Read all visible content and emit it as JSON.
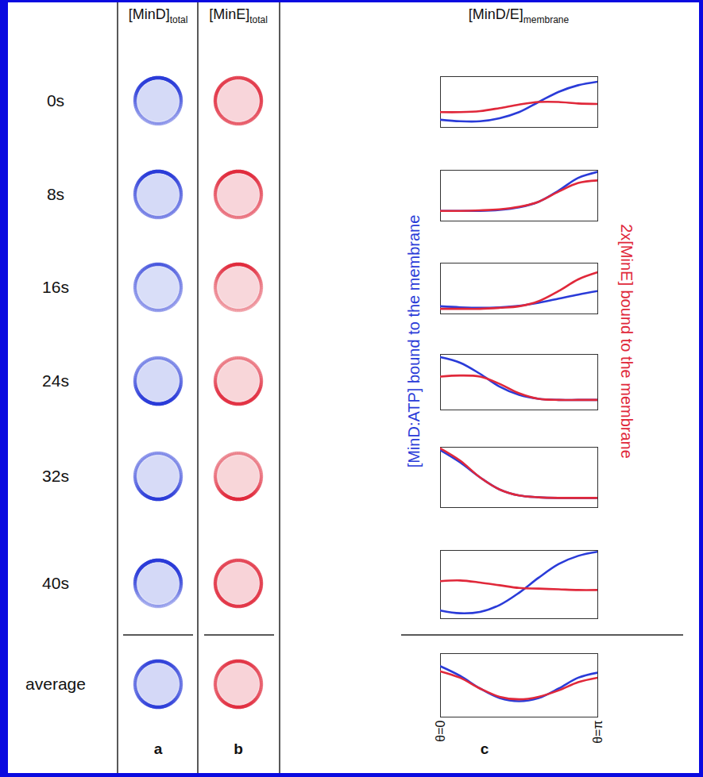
{
  "figure": {
    "column_heads": [
      {
        "text": "[MinD]",
        "subscript": "total"
      },
      {
        "text": "[MinE]",
        "subscript": "total"
      },
      {
        "text": "[MinD/E]",
        "subscript": "membrane"
      }
    ],
    "panel_letters": [
      "a",
      "b",
      "c"
    ]
  },
  "chart_data": [
    {
      "type": "line",
      "title": "0s",
      "x": [
        0,
        0.39,
        0.79,
        1.18,
        1.57,
        1.96,
        2.36,
        2.75,
        3.14
      ],
      "xlim": [
        0,
        3.14
      ],
      "ylim": [
        0,
        1
      ],
      "tick_labels": false,
      "series": [
        {
          "name": "[MinD:ATP] bound to the membrane",
          "color": "#2a3bd8",
          "values": [
            0.15,
            0.12,
            0.12,
            0.18,
            0.3,
            0.5,
            0.7,
            0.83,
            0.9
          ]
        },
        {
          "name": "2x[MinE] bound to the membrane",
          "color": "#e0283a",
          "values": [
            0.3,
            0.3,
            0.32,
            0.38,
            0.45,
            0.5,
            0.5,
            0.47,
            0.46
          ]
        }
      ]
    },
    {
      "type": "line",
      "title": "8s",
      "x": [
        0,
        0.39,
        0.79,
        1.18,
        1.57,
        1.96,
        2.36,
        2.75,
        3.14
      ],
      "xlim": [
        0,
        3.14
      ],
      "ylim": [
        0,
        1
      ],
      "tick_labels": false,
      "series": [
        {
          "name": "[MinD:ATP] bound to the membrane",
          "color": "#2a3bd8",
          "values": [
            0.2,
            0.2,
            0.2,
            0.22,
            0.27,
            0.38,
            0.6,
            0.85,
            0.97
          ]
        },
        {
          "name": "2x[MinE] bound to the membrane",
          "color": "#e0283a",
          "values": [
            0.2,
            0.2,
            0.21,
            0.23,
            0.28,
            0.38,
            0.58,
            0.75,
            0.8
          ]
        }
      ]
    },
    {
      "type": "line",
      "title": "16s",
      "x": [
        0,
        0.39,
        0.79,
        1.18,
        1.57,
        1.96,
        2.36,
        2.75,
        3.14
      ],
      "xlim": [
        0,
        3.14
      ],
      "ylim": [
        0,
        1
      ],
      "tick_labels": false,
      "series": [
        {
          "name": "[MinD:ATP] bound to the membrane",
          "color": "#2a3bd8",
          "values": [
            0.15,
            0.13,
            0.12,
            0.13,
            0.16,
            0.22,
            0.3,
            0.38,
            0.45
          ]
        },
        {
          "name": "2x[MinE] bound to the membrane",
          "color": "#e0283a",
          "values": [
            0.1,
            0.1,
            0.1,
            0.12,
            0.15,
            0.25,
            0.45,
            0.68,
            0.82
          ]
        }
      ]
    },
    {
      "type": "line",
      "title": "24s",
      "x": [
        0,
        0.39,
        0.79,
        1.18,
        1.57,
        1.96,
        2.36,
        2.75,
        3.14
      ],
      "xlim": [
        0,
        3.14
      ],
      "ylim": [
        0,
        1
      ],
      "tick_labels": false,
      "series": [
        {
          "name": "[MinD:ATP] bound to the membrane",
          "color": "#2a3bd8",
          "values": [
            0.95,
            0.85,
            0.65,
            0.42,
            0.27,
            0.2,
            0.18,
            0.18,
            0.18
          ]
        },
        {
          "name": "2x[MinE] bound to the membrane",
          "color": "#e0283a",
          "values": [
            0.6,
            0.62,
            0.6,
            0.47,
            0.3,
            0.2,
            0.18,
            0.18,
            0.18
          ]
        }
      ]
    },
    {
      "type": "line",
      "title": "32s",
      "x": [
        0,
        0.39,
        0.79,
        1.18,
        1.57,
        1.96,
        2.36,
        2.75,
        3.14
      ],
      "xlim": [
        0,
        3.14
      ],
      "ylim": [
        0,
        1
      ],
      "tick_labels": false,
      "series": [
        {
          "name": "[MinD:ATP] bound to the membrane",
          "color": "#2a3bd8",
          "values": [
            0.95,
            0.75,
            0.5,
            0.3,
            0.2,
            0.17,
            0.16,
            0.16,
            0.16
          ]
        },
        {
          "name": "2x[MinE] bound to the membrane",
          "color": "#e0283a",
          "values": [
            0.98,
            0.78,
            0.5,
            0.3,
            0.2,
            0.17,
            0.16,
            0.16,
            0.16
          ]
        }
      ]
    },
    {
      "type": "line",
      "title": "40s",
      "x": [
        0,
        0.39,
        0.79,
        1.18,
        1.57,
        1.96,
        2.36,
        2.75,
        3.14
      ],
      "xlim": [
        0,
        3.14
      ],
      "ylim": [
        0,
        1
      ],
      "tick_labels": false,
      "series": [
        {
          "name": "[MinD:ATP] bound to the membrane",
          "color": "#2a3bd8",
          "values": [
            0.12,
            0.08,
            0.1,
            0.2,
            0.38,
            0.6,
            0.8,
            0.92,
            0.98
          ]
        },
        {
          "name": "2x[MinE] bound to the membrane",
          "color": "#e0283a",
          "values": [
            0.55,
            0.56,
            0.53,
            0.49,
            0.45,
            0.44,
            0.43,
            0.42,
            0.42
          ]
        }
      ]
    },
    {
      "type": "line",
      "title": "average",
      "x": [
        0,
        0.39,
        0.79,
        1.18,
        1.57,
        1.96,
        2.36,
        2.75,
        3.14
      ],
      "xlim": [
        0,
        3.14
      ],
      "ylim": [
        0,
        1
      ],
      "tick_labels": "x",
      "xticks": [
        {
          "value": 0,
          "label": "θ=0"
        },
        {
          "value": 3.14,
          "label": "θ=π"
        }
      ],
      "series": [
        {
          "name": "[MinD:ATP] bound to the membrane",
          "color": "#2a3bd8",
          "values": [
            0.8,
            0.65,
            0.45,
            0.3,
            0.25,
            0.3,
            0.45,
            0.62,
            0.7
          ]
        },
        {
          "name": "2x[MinE] bound to the membrane",
          "color": "#e0283a",
          "values": [
            0.72,
            0.62,
            0.45,
            0.32,
            0.28,
            0.32,
            0.42,
            0.55,
            0.62
          ]
        }
      ]
    }
  ]
}
